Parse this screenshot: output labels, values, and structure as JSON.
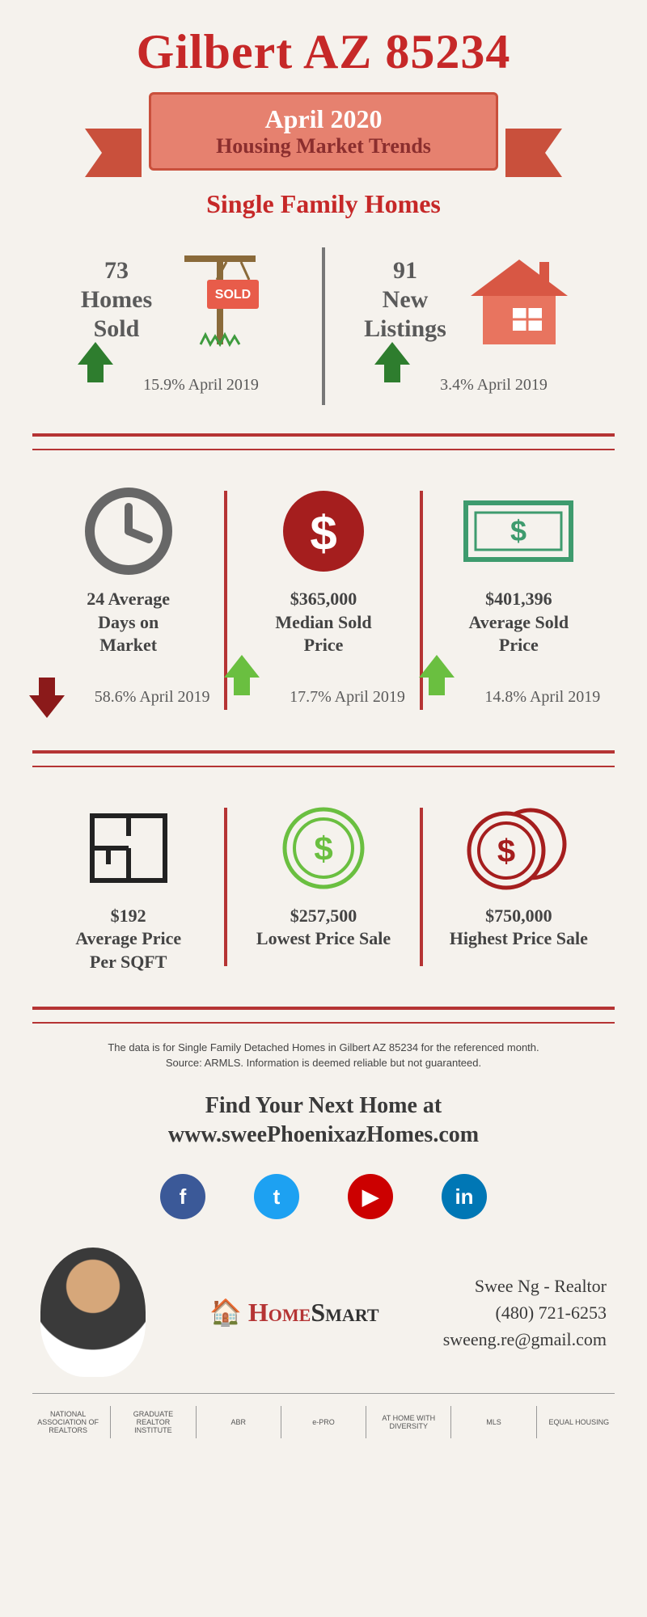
{
  "header": {
    "title": "Gilbert AZ 85234",
    "ribbon_line1": "April 2020",
    "ribbon_line2": "Housing Market Trends",
    "subtitle": "Single Family Homes"
  },
  "colors": {
    "primary_red": "#c62828",
    "ribbon_bg": "#e6816f",
    "ribbon_border": "#c9503c",
    "green_arrow": "#3a8a2d",
    "light_green_arrow": "#6abf40",
    "red_arrow": "#8b1a1a",
    "divider": "#b53434",
    "text_gray": "#5a5a5a",
    "bg": "#f5f2ed",
    "fb": "#3b5998",
    "tw": "#1da1f2",
    "yt": "#cc0000",
    "li": "#0077b5"
  },
  "row1": {
    "left": {
      "value": "73",
      "label_l1": "Homes",
      "label_l2": "Sold",
      "pct": "15.9% April 2019",
      "arrow_dir": "up",
      "arrow_color": "#2e7d2e"
    },
    "right": {
      "value": "91",
      "label_l1": "New",
      "label_l2": "Listings",
      "pct": "3.4% April 2019",
      "arrow_dir": "up",
      "arrow_color": "#2e7d2e"
    }
  },
  "row2": {
    "c1": {
      "value": "24 Average",
      "label": "Days on\nMarket",
      "pct": "58.6% April 2019",
      "arrow_dir": "down",
      "arrow_color": "#8b1a1a",
      "icon": "clock"
    },
    "c2": {
      "value": "$365,000",
      "label": "Median Sold\nPrice",
      "pct": "17.7% April 2019",
      "arrow_dir": "up",
      "arrow_color": "#6abf40",
      "icon": "dollar-circle"
    },
    "c3": {
      "value": "$401,396",
      "label": "Average Sold\nPrice",
      "pct": "14.8% April 2019",
      "arrow_dir": "up",
      "arrow_color": "#6abf40",
      "icon": "dollar-note"
    }
  },
  "row3": {
    "c1": {
      "value": "$192",
      "label": "Average Price\nPer SQFT",
      "icon": "floorplan"
    },
    "c2": {
      "value": "$257,500",
      "label": "Lowest Price Sale",
      "icon": "coin-green"
    },
    "c3": {
      "value": "$750,000",
      "label": "Highest Price Sale",
      "icon": "coins-red"
    }
  },
  "footnote": "The data is for Single Family Detached Homes in Gilbert AZ 85234 for the referenced month.\nSource: ARMLS. Information is deemed reliable but not guaranteed.",
  "cta_l1": "Find Your Next Home at",
  "cta_l2": "www.sweePhoenixazHomes.com",
  "socials": [
    {
      "name": "facebook",
      "glyph": "f",
      "color": "#3b5998"
    },
    {
      "name": "twitter",
      "glyph": "t",
      "color": "#1da1f2"
    },
    {
      "name": "youtube",
      "glyph": "▶",
      "color": "#cc0000"
    },
    {
      "name": "linkedin",
      "glyph": "in",
      "color": "#0077b5"
    }
  ],
  "brand": {
    "home": "Home",
    "smart": "Smart"
  },
  "contact": {
    "name": "Swee Ng - Realtor",
    "phone": "(480) 721-6253",
    "email": "sweeng.re@gmail.com"
  },
  "logos": [
    "NATIONAL ASSOCIATION OF REALTORS",
    "GRADUATE REALTOR INSTITUTE",
    "ABR",
    "e-PRO",
    "AT HOME WITH DIVERSITY",
    "MLS",
    "EQUAL HOUSING"
  ]
}
